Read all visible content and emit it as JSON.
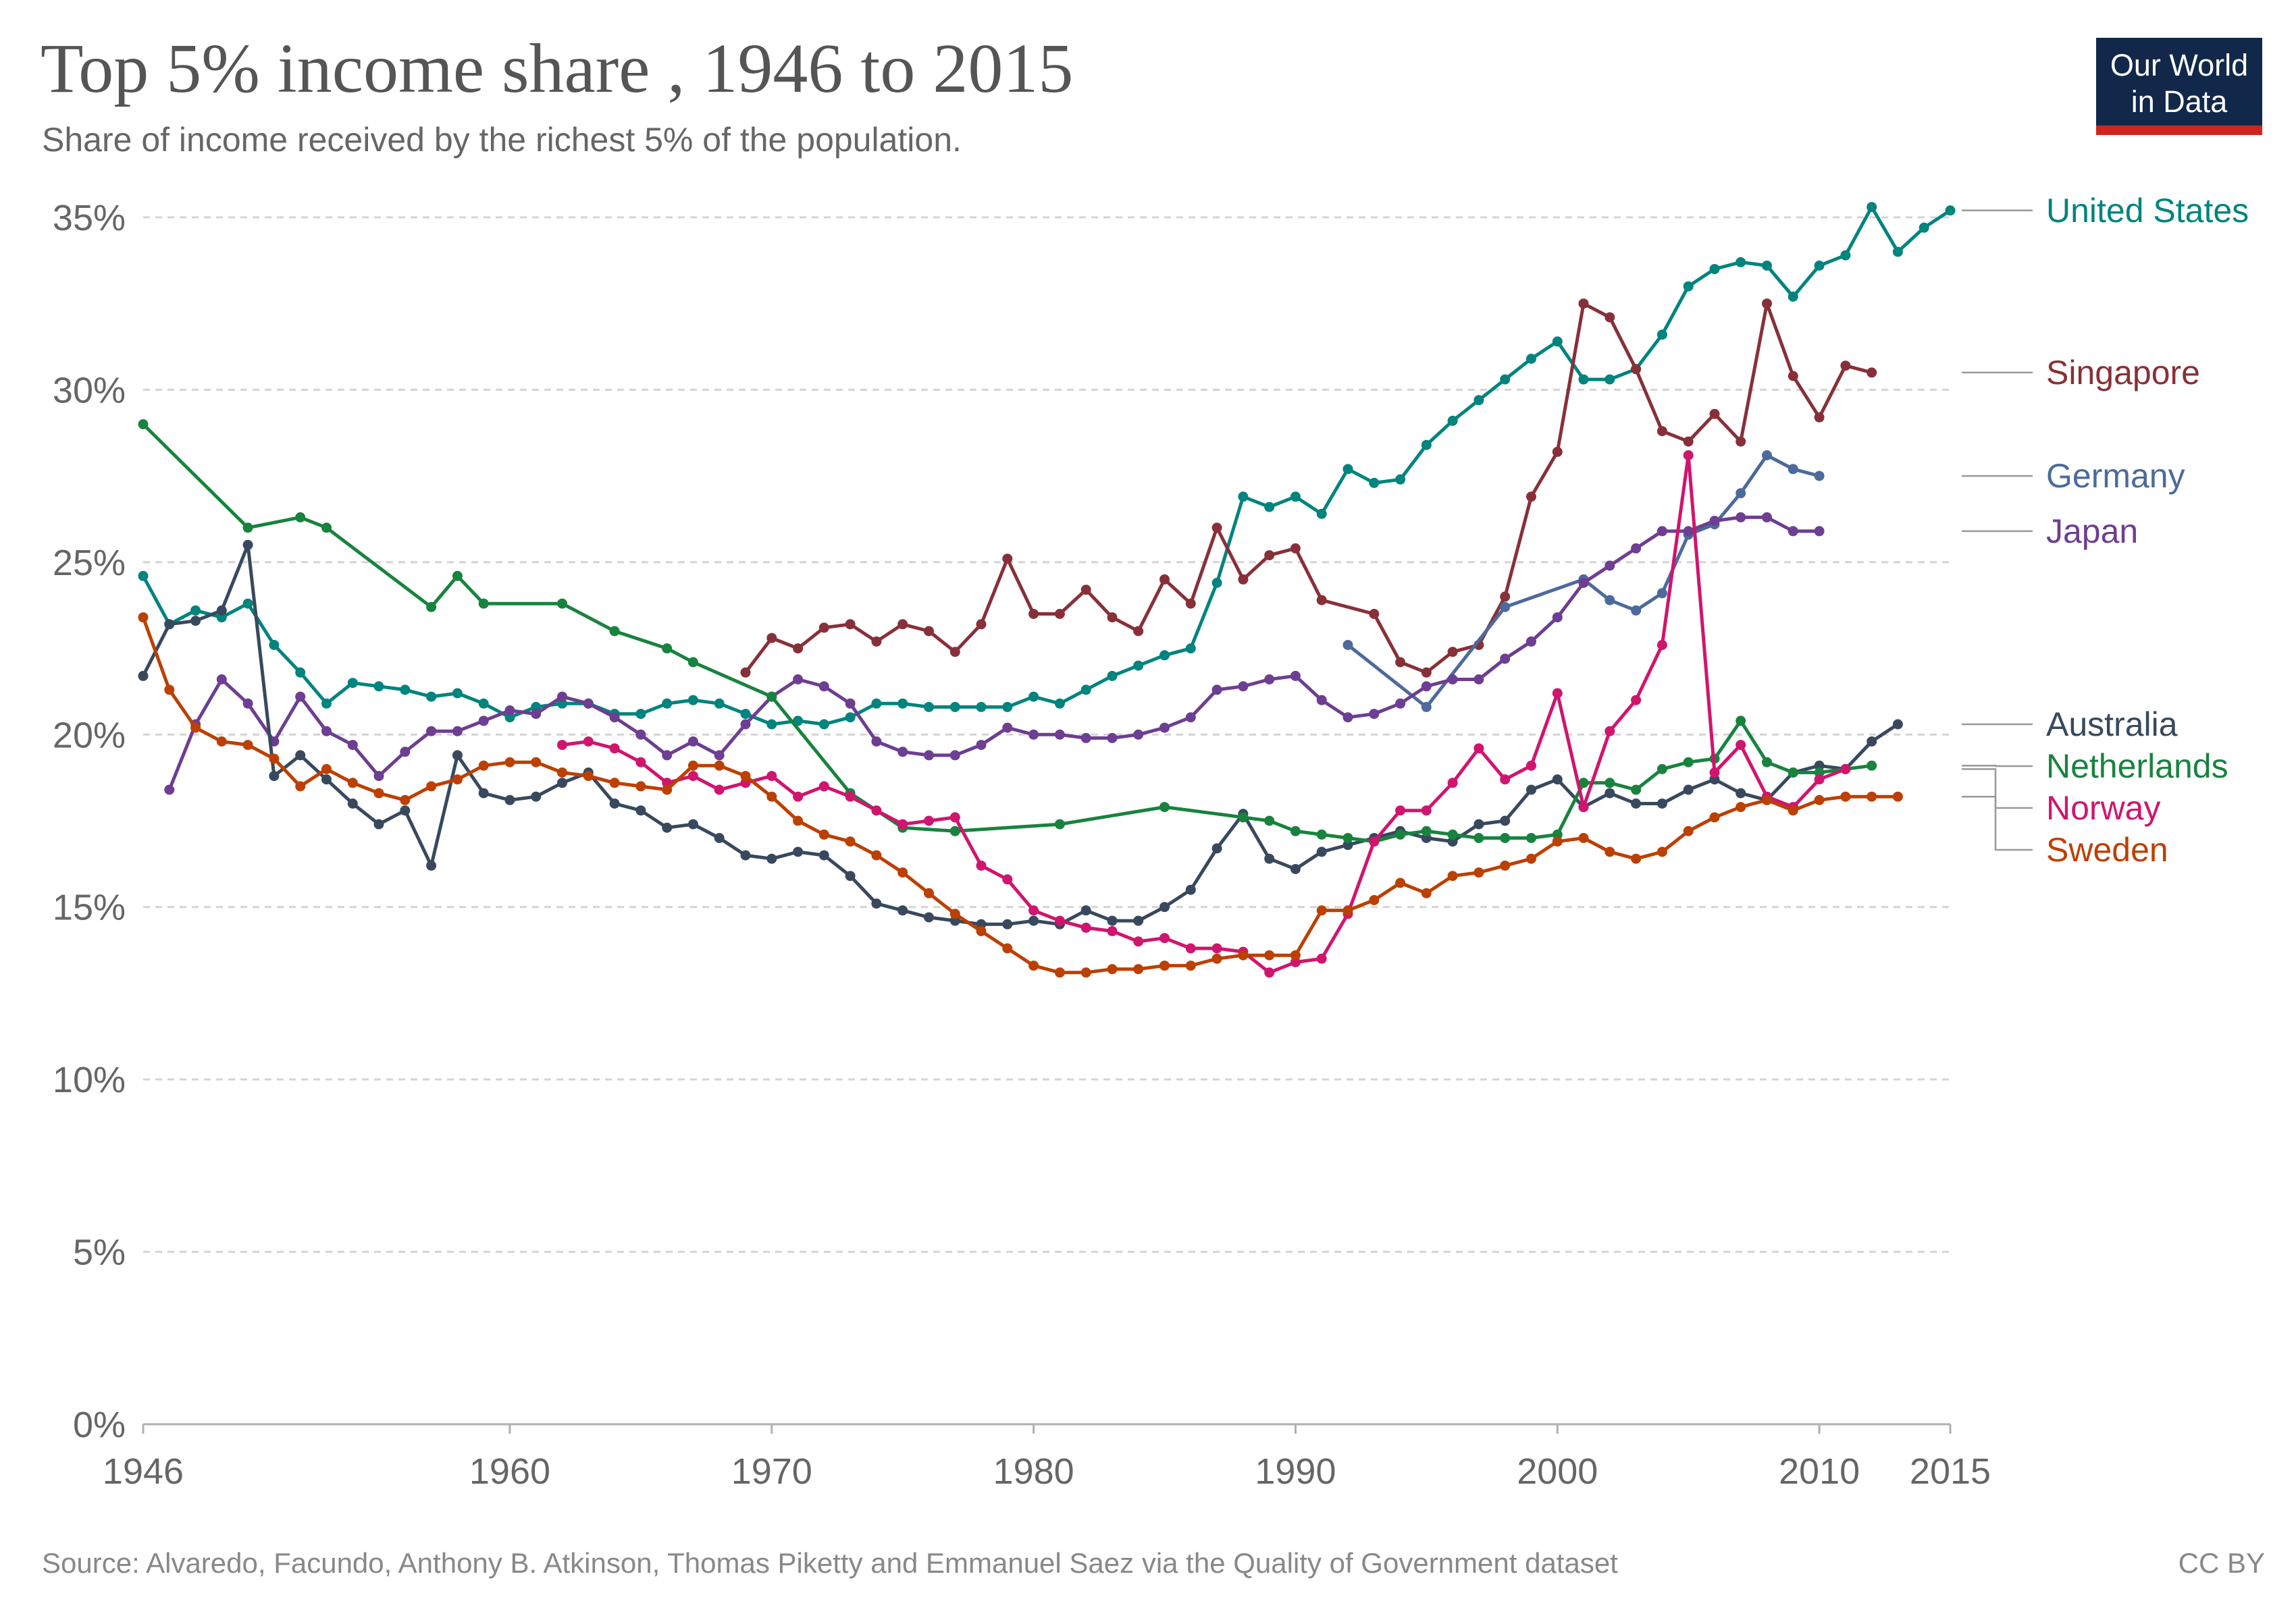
{
  "header": {
    "title": "Top 5% income share , 1946 to 2015",
    "subtitle": "Share of income received by the richest 5% of the population."
  },
  "logo": {
    "line1": "Our World",
    "line2": "in Data",
    "bg": "#12284a",
    "accent": "#ce261e"
  },
  "footer": {
    "source": "Source: Alvaredo, Facundo, Anthony B. Atkinson, Thomas Piketty and Emmanuel Saez via the Quality of Government dataset",
    "license": "CC BY"
  },
  "chart_data": {
    "type": "line",
    "xlim": [
      1946,
      2015
    ],
    "ylim": [
      0,
      35
    ],
    "x_ticks": [
      1946,
      1960,
      1970,
      1980,
      1990,
      2000,
      2010,
      2015
    ],
    "y_ticks": [
      0,
      5,
      10,
      15,
      20,
      25,
      30,
      35
    ],
    "y_tick_suffix": "%",
    "grid": "horizontal dashed",
    "legend": "right, labels at line ends",
    "series": [
      {
        "name": "United States",
        "color": "#00847e",
        "x": [
          1946,
          1947,
          1948,
          1949,
          1950,
          1951,
          1952,
          1953,
          1954,
          1955,
          1956,
          1957,
          1958,
          1959,
          1960,
          1961,
          1962,
          1963,
          1964,
          1965,
          1966,
          1967,
          1968,
          1969,
          1970,
          1971,
          1972,
          1973,
          1974,
          1975,
          1976,
          1977,
          1978,
          1979,
          1980,
          1981,
          1982,
          1983,
          1984,
          1985,
          1986,
          1987,
          1988,
          1989,
          1990,
          1991,
          1992,
          1993,
          1994,
          1995,
          1996,
          1997,
          1998,
          1999,
          2000,
          2001,
          2002,
          2003,
          2004,
          2005,
          2006,
          2007,
          2008,
          2009,
          2010,
          2011,
          2012,
          2013,
          2014,
          2015
        ],
        "y": [
          24.6,
          23.2,
          23.6,
          23.4,
          23.8,
          22.6,
          21.8,
          20.9,
          21.5,
          21.4,
          21.3,
          21.1,
          21.2,
          20.9,
          20.5,
          20.8,
          20.9,
          20.9,
          20.6,
          20.6,
          20.9,
          21.0,
          20.9,
          20.6,
          20.3,
          20.4,
          20.3,
          20.5,
          20.9,
          20.9,
          20.8,
          20.8,
          20.8,
          20.8,
          21.1,
          20.9,
          21.3,
          21.7,
          22.0,
          22.3,
          22.5,
          24.4,
          26.9,
          26.6,
          26.9,
          26.4,
          27.7,
          27.3,
          27.4,
          28.4,
          29.1,
          29.7,
          30.3,
          30.9,
          31.4,
          30.3,
          30.3,
          30.6,
          31.6,
          33.0,
          33.5,
          33.7,
          33.6,
          32.7,
          33.6,
          33.9,
          35.3,
          34.0,
          34.7,
          35.2
        ]
      },
      {
        "name": "Singapore",
        "color": "#883039",
        "x": [
          1969,
          1970,
          1971,
          1972,
          1973,
          1974,
          1975,
          1976,
          1977,
          1978,
          1979,
          1980,
          1981,
          1982,
          1983,
          1984,
          1985,
          1986,
          1987,
          1988,
          1989,
          1990,
          1991,
          1993,
          1994,
          1995,
          1996,
          1997,
          1998,
          1999,
          2000,
          2001,
          2002,
          2003,
          2004,
          2005,
          2006,
          2007,
          2008,
          2009,
          2010,
          2011,
          2012
        ],
        "y": [
          21.8,
          22.8,
          22.5,
          23.1,
          23.2,
          22.7,
          23.2,
          23.0,
          22.4,
          23.2,
          25.1,
          23.5,
          23.5,
          24.2,
          23.4,
          23.0,
          24.5,
          23.8,
          26.0,
          24.5,
          25.2,
          25.4,
          23.9,
          23.5,
          22.1,
          21.8,
          22.4,
          22.6,
          24.0,
          26.9,
          28.2,
          32.5,
          32.1,
          30.6,
          28.8,
          28.5,
          29.3,
          28.5,
          32.5,
          30.4,
          29.2,
          30.7,
          30.5
        ]
      },
      {
        "name": "Germany",
        "color": "#4c6a9c",
        "x": [
          1992,
          1995,
          1998,
          2001,
          2002,
          2003,
          2004,
          2005,
          2006,
          2007,
          2008,
          2009,
          2010
        ],
        "y": [
          22.6,
          20.8,
          23.7,
          24.5,
          23.9,
          23.6,
          24.1,
          25.8,
          26.1,
          27.0,
          28.1,
          27.7,
          27.5
        ]
      },
      {
        "name": "Japan",
        "color": "#6d3e91",
        "x": [
          1947,
          1948,
          1949,
          1950,
          1951,
          1952,
          1953,
          1954,
          1955,
          1956,
          1957,
          1958,
          1959,
          1960,
          1961,
          1962,
          1963,
          1964,
          1965,
          1966,
          1967,
          1968,
          1969,
          1970,
          1971,
          1972,
          1973,
          1974,
          1975,
          1976,
          1977,
          1978,
          1979,
          1980,
          1981,
          1982,
          1983,
          1984,
          1985,
          1986,
          1987,
          1988,
          1989,
          1990,
          1991,
          1992,
          1993,
          1994,
          1995,
          1996,
          1997,
          1998,
          1999,
          2000,
          2001,
          2002,
          2003,
          2004,
          2005,
          2006,
          2007,
          2008,
          2009,
          2010
        ],
        "y": [
          18.4,
          20.3,
          21.6,
          20.9,
          19.8,
          21.1,
          20.1,
          19.7,
          18.8,
          19.5,
          20.1,
          20.1,
          20.4,
          20.7,
          20.6,
          21.1,
          20.9,
          20.5,
          20.0,
          19.4,
          19.8,
          19.4,
          20.3,
          21.1,
          21.6,
          21.4,
          20.9,
          19.8,
          19.5,
          19.4,
          19.4,
          19.7,
          20.2,
          20.0,
          20.0,
          19.9,
          19.9,
          20.0,
          20.2,
          20.5,
          21.3,
          21.4,
          21.6,
          21.7,
          21.0,
          20.5,
          20.6,
          20.9,
          21.4,
          21.6,
          21.6,
          22.2,
          22.7,
          23.4,
          24.4,
          24.9,
          25.4,
          25.9,
          25.9,
          26.2,
          26.3,
          26.3,
          25.9,
          25.9
        ]
      },
      {
        "name": "Australia",
        "color": "#38495e",
        "x": [
          1946,
          1947,
          1948,
          1949,
          1950,
          1951,
          1952,
          1953,
          1954,
          1955,
          1956,
          1957,
          1958,
          1959,
          1960,
          1961,
          1962,
          1963,
          1964,
          1965,
          1966,
          1967,
          1968,
          1969,
          1970,
          1971,
          1972,
          1973,
          1974,
          1975,
          1976,
          1977,
          1978,
          1979,
          1980,
          1981,
          1982,
          1983,
          1984,
          1985,
          1986,
          1987,
          1988,
          1989,
          1990,
          1991,
          1992,
          1993,
          1994,
          1995,
          1996,
          1997,
          1998,
          1999,
          2000,
          2001,
          2002,
          2003,
          2004,
          2005,
          2006,
          2007,
          2008,
          2009,
          2010,
          2011,
          2012,
          2013
        ],
        "y": [
          21.7,
          23.2,
          23.3,
          23.6,
          25.5,
          18.8,
          19.4,
          18.7,
          18.0,
          17.4,
          17.8,
          16.2,
          19.4,
          18.3,
          18.1,
          18.2,
          18.6,
          18.9,
          18.0,
          17.8,
          17.3,
          17.4,
          17.0,
          16.5,
          16.4,
          16.6,
          16.5,
          15.9,
          15.1,
          14.9,
          14.7,
          14.6,
          14.5,
          14.5,
          14.6,
          14.5,
          14.9,
          14.6,
          14.6,
          15.0,
          15.5,
          16.7,
          17.7,
          16.4,
          16.1,
          16.6,
          16.8,
          17.0,
          17.2,
          17.0,
          16.9,
          17.4,
          17.5,
          18.4,
          18.7,
          17.9,
          18.3,
          18.0,
          18.0,
          18.4,
          18.7,
          18.3,
          18.1,
          18.9,
          19.1,
          19.0,
          19.8,
          20.3
        ]
      },
      {
        "name": "Netherlands",
        "color": "#18833e",
        "x": [
          1946,
          1950,
          1952,
          1953,
          1957,
          1958,
          1959,
          1962,
          1964,
          1966,
          1967,
          1970,
          1973,
          1975,
          1977,
          1981,
          1985,
          1988,
          1989,
          1990,
          1991,
          1992,
          1993,
          1994,
          1995,
          1996,
          1997,
          1998,
          1999,
          2000,
          2001,
          2002,
          2003,
          2004,
          2005,
          2006,
          2007,
          2008,
          2009,
          2010,
          2011,
          2012
        ],
        "y": [
          29.0,
          26.0,
          26.3,
          26.0,
          23.7,
          24.6,
          23.8,
          23.8,
          23.0,
          22.5,
          22.1,
          21.1,
          18.3,
          17.3,
          17.2,
          17.4,
          17.9,
          17.6,
          17.5,
          17.2,
          17.1,
          17.0,
          16.9,
          17.1,
          17.2,
          17.1,
          17.0,
          17.0,
          17.0,
          17.1,
          18.6,
          18.6,
          18.4,
          19.0,
          19.2,
          19.3,
          20.4,
          19.2,
          18.9,
          18.9,
          19.0,
          19.1
        ]
      },
      {
        "name": "Norway",
        "color": "#d0156e",
        "x": [
          1962,
          1963,
          1964,
          1965,
          1966,
          1967,
          1968,
          1969,
          1970,
          1971,
          1972,
          1973,
          1974,
          1975,
          1976,
          1977,
          1978,
          1979,
          1980,
          1981,
          1982,
          1983,
          1984,
          1985,
          1986,
          1987,
          1988,
          1989,
          1990,
          1991,
          1992,
          1993,
          1994,
          1995,
          1996,
          1997,
          1998,
          1999,
          2000,
          2001,
          2002,
          2003,
          2004,
          2005,
          2006,
          2007,
          2008,
          2009,
          2010,
          2011
        ],
        "y": [
          19.7,
          19.8,
          19.6,
          19.2,
          18.6,
          18.8,
          18.4,
          18.6,
          18.8,
          18.2,
          18.5,
          18.2,
          17.8,
          17.4,
          17.5,
          17.6,
          16.2,
          15.8,
          14.9,
          14.6,
          14.4,
          14.3,
          14.0,
          14.1,
          13.8,
          13.8,
          13.7,
          13.1,
          13.4,
          13.5,
          14.8,
          16.9,
          17.8,
          17.8,
          18.6,
          19.6,
          18.7,
          19.1,
          21.2,
          17.9,
          20.1,
          21.0,
          22.6,
          28.1,
          18.9,
          19.7,
          18.2,
          17.9,
          18.7,
          19.0
        ]
      },
      {
        "name": "Sweden",
        "color": "#bc4001",
        "x": [
          1946,
          1947,
          1948,
          1949,
          1950,
          1951,
          1952,
          1953,
          1954,
          1955,
          1956,
          1957,
          1958,
          1959,
          1960,
          1961,
          1962,
          1963,
          1964,
          1965,
          1966,
          1967,
          1968,
          1969,
          1970,
          1971,
          1972,
          1973,
          1974,
          1975,
          1976,
          1977,
          1978,
          1979,
          1980,
          1981,
          1982,
          1983,
          1984,
          1985,
          1986,
          1987,
          1988,
          1989,
          1990,
          1991,
          1992,
          1993,
          1994,
          1995,
          1996,
          1997,
          1998,
          1999,
          2000,
          2001,
          2002,
          2003,
          2004,
          2005,
          2006,
          2007,
          2008,
          2009,
          2010,
          2011,
          2012,
          2013
        ],
        "y": [
          23.4,
          21.3,
          20.2,
          19.8,
          19.7,
          19.3,
          18.5,
          19.0,
          18.6,
          18.3,
          18.1,
          18.5,
          18.7,
          19.1,
          19.2,
          19.2,
          18.9,
          18.8,
          18.6,
          18.5,
          18.4,
          19.1,
          19.1,
          18.8,
          18.2,
          17.5,
          17.1,
          16.9,
          16.5,
          16.0,
          15.4,
          14.8,
          14.3,
          13.8,
          13.3,
          13.1,
          13.1,
          13.2,
          13.2,
          13.3,
          13.3,
          13.5,
          13.6,
          13.6,
          13.6,
          14.9,
          14.9,
          15.2,
          15.7,
          15.4,
          15.9,
          16.0,
          16.2,
          16.4,
          16.9,
          17.0,
          16.6,
          16.4,
          16.6,
          17.2,
          17.6,
          17.9,
          18.1,
          17.8,
          18.1,
          18.2,
          18.2,
          18.2
        ]
      }
    ]
  }
}
